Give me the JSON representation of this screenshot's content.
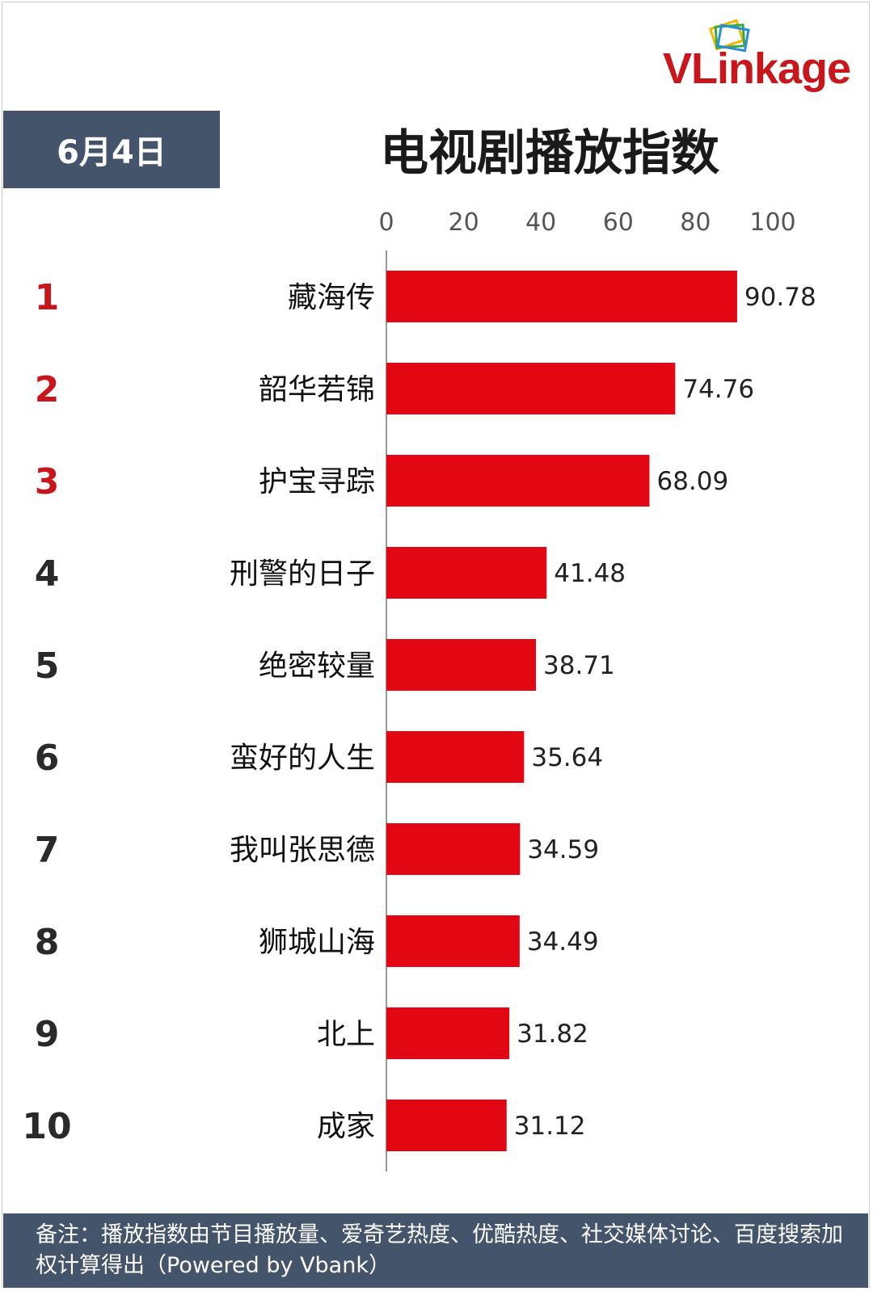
{
  "logo": {
    "text": "VLinkage"
  },
  "header": {
    "date": "6月4日",
    "title": "电视剧播放指数"
  },
  "colors": {
    "bar": "#e30613",
    "top_rank": "#c8161d",
    "rank": "#2a2a2a",
    "banner": "#44546a"
  },
  "chart_data": {
    "type": "bar",
    "orientation": "horizontal",
    "title": "电视剧播放指数",
    "x_ticks": [
      0,
      20,
      40,
      60,
      80,
      100
    ],
    "xlim": [
      0,
      100
    ],
    "grid": false,
    "ranks": [
      "1",
      "2",
      "3",
      "4",
      "5",
      "6",
      "7",
      "8",
      "9",
      "10"
    ],
    "categories": [
      "藏海传",
      "韶华若锦",
      "护宝寻踪",
      "刑警的日子",
      "绝密较量",
      "蛮好的人生",
      "我叫张思德",
      "狮城山海",
      "北上",
      "成家"
    ],
    "values": [
      90.78,
      74.76,
      68.09,
      41.48,
      38.71,
      35.64,
      34.59,
      34.49,
      31.82,
      31.12
    ],
    "value_labels": [
      "90.78",
      "74.76",
      "68.09",
      "41.48",
      "38.71",
      "35.64",
      "34.59",
      "34.49",
      "31.82",
      "31.12"
    ]
  },
  "footer": {
    "note": "备注：播放指数由节目播放量、爱奇艺热度、优酷热度、社交媒体讨论、百度搜索加权计算得出（Powered by Vbank）"
  }
}
